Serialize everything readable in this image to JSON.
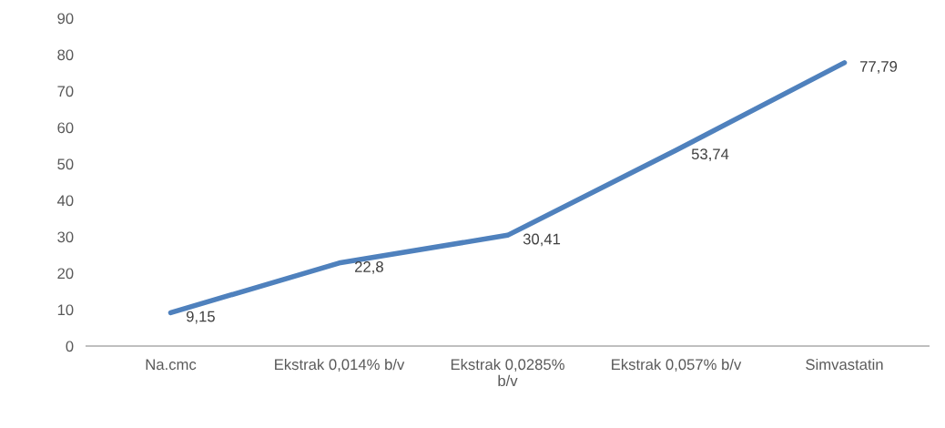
{
  "chart_data": {
    "type": "line",
    "categories": [
      "Na.cmc",
      "Ekstrak 0,014% b/v",
      "Ekstrak 0,0285% b/v",
      "Ekstrak 0,057% b/v",
      "Simvastatin"
    ],
    "series": [
      {
        "color": "#4f81bd",
        "values": [
          9.15,
          22.8,
          30.41,
          53.74,
          77.79
        ],
        "value_labels": [
          "9,15",
          "22,8",
          "30,41",
          "53,74",
          "77,79"
        ]
      }
    ],
    "ylim": [
      0,
      90
    ],
    "yticks": [
      0,
      10,
      20,
      30,
      40,
      50,
      60,
      70,
      80,
      90
    ],
    "grid": false,
    "legend": false,
    "marker": "none",
    "line_style": "solid"
  }
}
